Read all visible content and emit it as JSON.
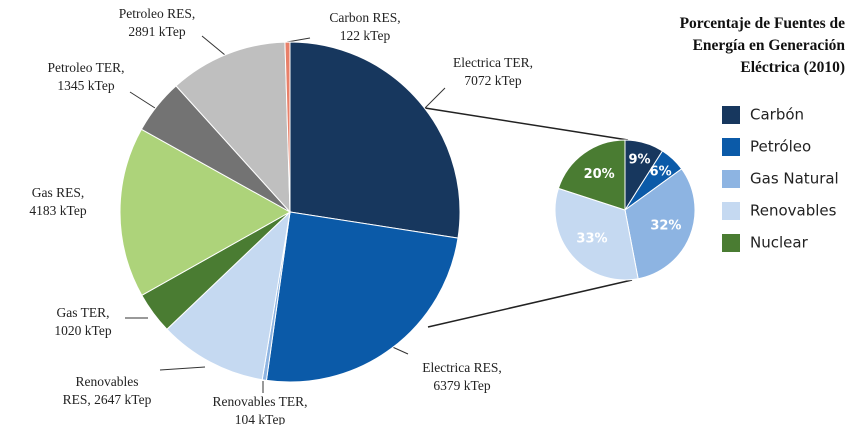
{
  "chart_data": [
    {
      "type": "pie",
      "categories": [
        "Electrica TER,",
        "Electrica RES,",
        "Renovables TER,",
        "Renovables",
        "Gas TER,",
        "Gas RES,",
        "Petroleo TER,",
        "Petroleo RES,",
        "Carbon RES,"
      ],
      "values": [
        7072,
        6379,
        104,
        2647,
        1020,
        4183,
        1345,
        2891,
        122
      ],
      "value_labels": [
        "7072 kTep",
        "6379 kTep",
        "104 kTep",
        "RES, 2647 kTep",
        "1020 kTep",
        "4183 kTep",
        "1345 kTep",
        "2891 kTep",
        "122 kTep"
      ],
      "colors": [
        "#17375e",
        "#0b5aa8",
        "#8db4e2",
        "#c5d9f1",
        "#4a7c32",
        "#add37a",
        "#737373",
        "#bfbfbf",
        "#e8806a"
      ]
    },
    {
      "type": "pie",
      "title": "Porcentaje de Fuentes de\nEnergía en Generación\nEléctrica (2010)",
      "categories": [
        "Carbón",
        "Petróleo",
        "Gas Natural",
        "Renovables",
        "Nuclear"
      ],
      "values": [
        9,
        6,
        32,
        33,
        20
      ],
      "value_labels": [
        "9%",
        "6%",
        "32%",
        "33%",
        "20%"
      ],
      "colors": [
        "#17375e",
        "#0b5aa8",
        "#8db4e2",
        "#c5d9f1",
        "#4a7c32"
      ],
      "legend": "right"
    }
  ]
}
